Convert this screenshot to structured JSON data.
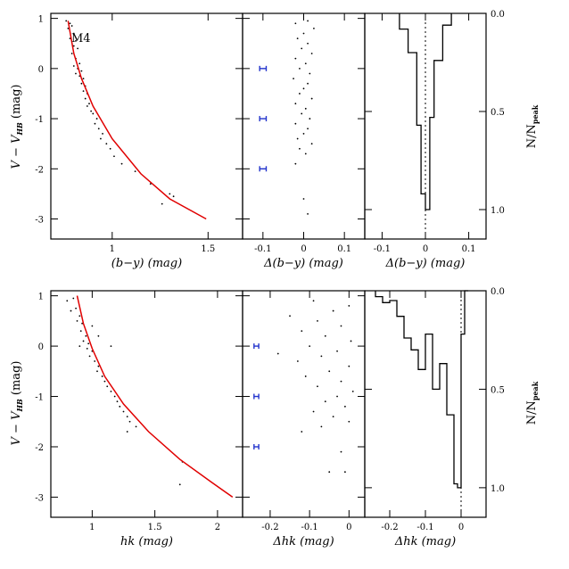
{
  "figure": {
    "cluster_label": "M4",
    "ylabel_main": "V − V",
    "ylabel_sub": "HB",
    "ylabel_unit": "(mag)",
    "hist_ylabel_main": "N/N",
    "hist_ylabel_sub": "peak"
  },
  "chart_data": [
    {
      "type": "scatter",
      "panel": "top-cmd",
      "xlabel": "(b−y)  (mag)",
      "ylabel": "V−V_HB (mag)",
      "xlim": [
        0.68,
        1.68
      ],
      "ylim": [
        1.1,
        -3.4
      ],
      "xticks": [
        1.0,
        1.5
      ],
      "yticks": [
        -3,
        -2,
        -1,
        0,
        1
      ],
      "fiducial": {
        "x": [
          0.77,
          0.8,
          0.84,
          0.9,
          1.0,
          1.15,
          1.3,
          1.49
        ],
        "y": [
          0.95,
          0.3,
          -0.2,
          -0.75,
          -1.4,
          -2.1,
          -2.6,
          -3.0
        ],
        "color": "#e00000"
      },
      "points": [
        [
          0.76,
          0.95
        ],
        [
          0.78,
          0.9
        ],
        [
          0.77,
          0.8
        ],
        [
          0.79,
          0.85
        ],
        [
          0.8,
          0.7
        ],
        [
          0.78,
          0.6
        ],
        [
          0.81,
          0.55
        ],
        [
          0.8,
          0.45
        ],
        [
          0.82,
          0.4
        ],
        [
          0.79,
          0.3
        ],
        [
          0.81,
          0.2
        ],
        [
          0.83,
          0.1
        ],
        [
          0.8,
          0.05
        ],
        [
          0.82,
          0.0
        ],
        [
          0.84,
          -0.05
        ],
        [
          0.81,
          -0.1
        ],
        [
          0.83,
          -0.15
        ],
        [
          0.85,
          -0.2
        ],
        [
          0.84,
          -0.3
        ],
        [
          0.86,
          -0.35
        ],
        [
          0.85,
          -0.45
        ],
        [
          0.87,
          -0.5
        ],
        [
          0.86,
          -0.6
        ],
        [
          0.88,
          -0.7
        ],
        [
          0.87,
          -0.75
        ],
        [
          0.89,
          -0.85
        ],
        [
          0.9,
          -0.9
        ],
        [
          0.92,
          -1.0
        ],
        [
          0.91,
          -1.1
        ],
        [
          0.93,
          -1.2
        ],
        [
          0.95,
          -1.3
        ],
        [
          0.94,
          -1.4
        ],
        [
          0.97,
          -1.5
        ],
        [
          0.99,
          -1.6
        ],
        [
          1.01,
          -1.75
        ],
        [
          1.05,
          -1.9
        ],
        [
          1.12,
          -2.05
        ],
        [
          1.2,
          -2.3
        ],
        [
          1.3,
          -2.5
        ],
        [
          1.32,
          -2.55
        ],
        [
          1.26,
          -2.7
        ]
      ]
    },
    {
      "type": "scatter",
      "panel": "top-residual",
      "xlabel": "Δ(b−y)  (mag)",
      "xlim": [
        -0.15,
        0.15
      ],
      "ylim": [
        1.1,
        -3.4
      ],
      "xticks": [
        -0.1,
        0.0,
        0.1
      ],
      "error_bars": [
        {
          "x": -0.1,
          "y": -2.0,
          "err": 0.008
        },
        {
          "x": -0.1,
          "y": -1.0,
          "err": 0.008
        },
        {
          "x": -0.1,
          "y": 0.0,
          "err": 0.008
        }
      ],
      "points": [
        [
          0.01,
          -2.9
        ],
        [
          0.0,
          -2.6
        ],
        [
          -0.02,
          -1.9
        ],
        [
          0.005,
          -1.7
        ],
        [
          -0.01,
          -1.6
        ],
        [
          0.02,
          -1.5
        ],
        [
          -0.015,
          -1.4
        ],
        [
          0.0,
          -1.3
        ],
        [
          0.01,
          -1.2
        ],
        [
          -0.02,
          -1.1
        ],
        [
          0.015,
          -1.0
        ],
        [
          -0.005,
          -0.9
        ],
        [
          0.005,
          -0.8
        ],
        [
          -0.02,
          -0.7
        ],
        [
          0.02,
          -0.6
        ],
        [
          -0.01,
          -0.5
        ],
        [
          0.0,
          -0.4
        ],
        [
          0.01,
          -0.3
        ],
        [
          -0.025,
          -0.2
        ],
        [
          0.015,
          -0.1
        ],
        [
          -0.01,
          0.0
        ],
        [
          0.005,
          0.1
        ],
        [
          -0.02,
          0.2
        ],
        [
          0.02,
          0.3
        ],
        [
          -0.005,
          0.4
        ],
        [
          0.01,
          0.5
        ],
        [
          -0.015,
          0.6
        ],
        [
          0.0,
          0.7
        ],
        [
          0.025,
          0.8
        ],
        [
          -0.02,
          0.9
        ],
        [
          0.01,
          0.95
        ]
      ]
    },
    {
      "type": "bar",
      "panel": "top-histogram",
      "xlabel": "Δ(b−y)  (mag)",
      "xlim": [
        -0.14,
        0.14
      ],
      "ylim": [
        0,
        1.15
      ],
      "xticks": [
        -0.1,
        0.0,
        0.1
      ],
      "yticks": [
        0.0,
        0.5,
        1.0
      ],
      "bin_edges": [
        -0.06,
        -0.04,
        -0.02,
        -0.01,
        0.0,
        0.01,
        0.02,
        0.04,
        0.06
      ],
      "values": [
        0.08,
        0.2,
        0.57,
        0.92,
        1.0,
        0.53,
        0.24,
        0.06
      ]
    },
    {
      "type": "scatter",
      "panel": "bottom-cmd",
      "xlabel": "hk  (mag)",
      "ylabel": "V−V_HB (mag)",
      "xlim": [
        0.67,
        2.2
      ],
      "ylim": [
        1.1,
        -3.4
      ],
      "xticks": [
        1.0,
        1.5,
        2.0
      ],
      "yticks": [
        -3,
        -2,
        -1,
        0,
        1
      ],
      "fiducial": {
        "x": [
          0.88,
          0.93,
          1.0,
          1.1,
          1.25,
          1.45,
          1.7,
          1.95,
          2.12
        ],
        "y": [
          1.0,
          0.45,
          -0.05,
          -0.6,
          -1.15,
          -1.7,
          -2.25,
          -2.7,
          -3.0
        ],
        "color": "#e00000"
      },
      "points": [
        [
          0.8,
          0.9
        ],
        [
          0.85,
          0.95
        ],
        [
          0.83,
          0.7
        ],
        [
          0.87,
          0.75
        ],
        [
          0.9,
          0.6
        ],
        [
          0.88,
          0.5
        ],
        [
          0.92,
          0.45
        ],
        [
          0.91,
          0.3
        ],
        [
          0.95,
          0.2
        ],
        [
          0.93,
          0.1
        ],
        [
          0.97,
          0.05
        ],
        [
          0.96,
          -0.05
        ],
        [
          1.0,
          -0.1
        ],
        [
          0.98,
          -0.2
        ],
        [
          1.02,
          -0.3
        ],
        [
          1.05,
          -0.4
        ],
        [
          1.04,
          -0.5
        ],
        [
          1.08,
          -0.6
        ],
        [
          1.1,
          -0.7
        ],
        [
          1.12,
          -0.8
        ],
        [
          1.15,
          -0.9
        ],
        [
          1.18,
          -1.0
        ],
        [
          1.2,
          -1.1
        ],
        [
          1.22,
          -1.2
        ],
        [
          1.25,
          -1.3
        ],
        [
          1.28,
          -1.4
        ],
        [
          1.3,
          -1.5
        ],
        [
          1.35,
          -1.6
        ],
        [
          1.28,
          -1.7
        ],
        [
          1.7,
          -2.75
        ],
        [
          1.72,
          -2.3
        ],
        [
          1.05,
          0.2
        ],
        [
          1.15,
          0.0
        ],
        [
          0.9,
          0.0
        ],
        [
          1.0,
          0.4
        ]
      ]
    },
    {
      "type": "scatter",
      "panel": "bottom-residual",
      "xlabel": "Δhk  (mag)",
      "xlim": [
        -0.27,
        0.04
      ],
      "ylim": [
        1.1,
        -3.4
      ],
      "xticks": [
        -0.2,
        -0.1,
        0.0
      ],
      "error_bars": [
        {
          "x": -0.235,
          "y": -2.0,
          "err": 0.006
        },
        {
          "x": -0.235,
          "y": -1.0,
          "err": 0.006
        },
        {
          "x": -0.235,
          "y": 0.0,
          "err": 0.006
        }
      ],
      "points": [
        [
          -0.01,
          -2.5
        ],
        [
          -0.05,
          -2.5
        ],
        [
          -0.02,
          -2.1
        ],
        [
          -0.12,
          -1.7
        ],
        [
          -0.07,
          -1.6
        ],
        [
          0.0,
          -1.5
        ],
        [
          -0.04,
          -1.4
        ],
        [
          -0.09,
          -1.3
        ],
        [
          -0.01,
          -1.2
        ],
        [
          -0.06,
          -1.1
        ],
        [
          -0.03,
          -1.0
        ],
        [
          0.01,
          -0.9
        ],
        [
          -0.08,
          -0.8
        ],
        [
          -0.02,
          -0.7
        ],
        [
          -0.11,
          -0.6
        ],
        [
          -0.05,
          -0.5
        ],
        [
          0.0,
          -0.4
        ],
        [
          -0.13,
          -0.3
        ],
        [
          -0.07,
          -0.2
        ],
        [
          -0.03,
          -0.1
        ],
        [
          -0.1,
          0.0
        ],
        [
          0.005,
          0.1
        ],
        [
          -0.06,
          0.2
        ],
        [
          -0.12,
          0.3
        ],
        [
          -0.02,
          0.4
        ],
        [
          -0.08,
          0.5
        ],
        [
          -0.15,
          0.6
        ],
        [
          -0.04,
          0.7
        ],
        [
          0.0,
          0.8
        ],
        [
          -0.09,
          0.9
        ],
        [
          -0.18,
          -0.15
        ]
      ]
    },
    {
      "type": "bar",
      "panel": "bottom-histogram",
      "xlabel": "Δhk  (mag)",
      "xlim": [
        -0.27,
        0.07
      ],
      "ylim": [
        0,
        1.15
      ],
      "xticks": [
        -0.2,
        -0.1,
        0.0
      ],
      "yticks": [
        0.0,
        0.5,
        1.0
      ],
      "bin_edges": [
        -0.24,
        -0.22,
        -0.2,
        -0.18,
        -0.16,
        -0.14,
        -0.12,
        -0.1,
        -0.08,
        -0.06,
        -0.04,
        -0.02,
        -0.01,
        0.0,
        0.01,
        0.02
      ],
      "values": [
        0.03,
        0.06,
        0.05,
        0.13,
        0.24,
        0.3,
        0.4,
        0.22,
        0.5,
        0.37,
        0.63,
        0.98,
        1.0,
        0.22,
        0.0
      ]
    }
  ]
}
